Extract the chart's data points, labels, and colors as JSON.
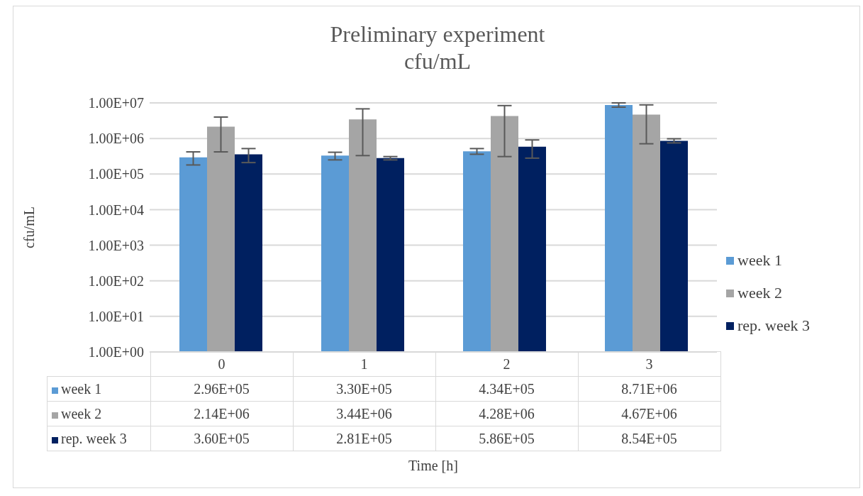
{
  "chart_data": {
    "type": "bar",
    "title": "Preliminary experiment",
    "subtitle": "cfu/mL",
    "annotations": [
      "Time [h]"
    ],
    "ylabel": "cfu/mL",
    "categories": [
      "0",
      "1",
      "2",
      "3"
    ],
    "series": [
      {
        "name": "week 1",
        "color": "#5b9bd5",
        "values": [
          296000,
          330000,
          434000,
          8710000
        ],
        "value_labels": [
          "2.96E+05",
          "3.30E+05",
          "4.34E+05",
          "8.71E+06"
        ],
        "errors": [
          [
            180000,
            420000
          ],
          [
            250000,
            410000
          ],
          [
            360000,
            520000
          ],
          [
            7600000,
            10000000
          ]
        ]
      },
      {
        "name": "week 2",
        "color": "#a5a5a5",
        "values": [
          2140000,
          3440000,
          4280000,
          4670000
        ],
        "value_labels": [
          "2.14E+06",
          "3.44E+06",
          "4.28E+06",
          "4.67E+06"
        ],
        "errors": [
          [
            420000,
            4000000
          ],
          [
            330000,
            6800000
          ],
          [
            310000,
            8400000
          ],
          [
            710000,
            8800000
          ]
        ]
      },
      {
        "name": "rep. week 3",
        "color": "#002060",
        "values": [
          360000,
          281000,
          586000,
          854000
        ],
        "value_labels": [
          "3.60E+05",
          "2.81E+05",
          "5.86E+05",
          "8.54E+05"
        ],
        "errors": [
          [
            210000,
            520000
          ],
          [
            250000,
            310000
          ],
          [
            280000,
            910000
          ],
          [
            750000,
            980000
          ]
        ]
      }
    ],
    "log": "y",
    "ylim": [
      1,
      10000000
    ],
    "yticks": [
      {
        "value": 1,
        "label": "1.00E+00"
      },
      {
        "value": 10,
        "label": "1.00E+01"
      },
      {
        "value": 100,
        "label": "1.00E+02"
      },
      {
        "value": 1000,
        "label": "1.00E+03"
      },
      {
        "value": 10000,
        "label": "1.00E+04"
      },
      {
        "value": 100000,
        "label": "1.00E+05"
      },
      {
        "value": 1000000,
        "label": "1.00E+06"
      },
      {
        "value": 10000000,
        "label": "1.00E+07"
      }
    ],
    "grid": "y",
    "legend": "right"
  }
}
